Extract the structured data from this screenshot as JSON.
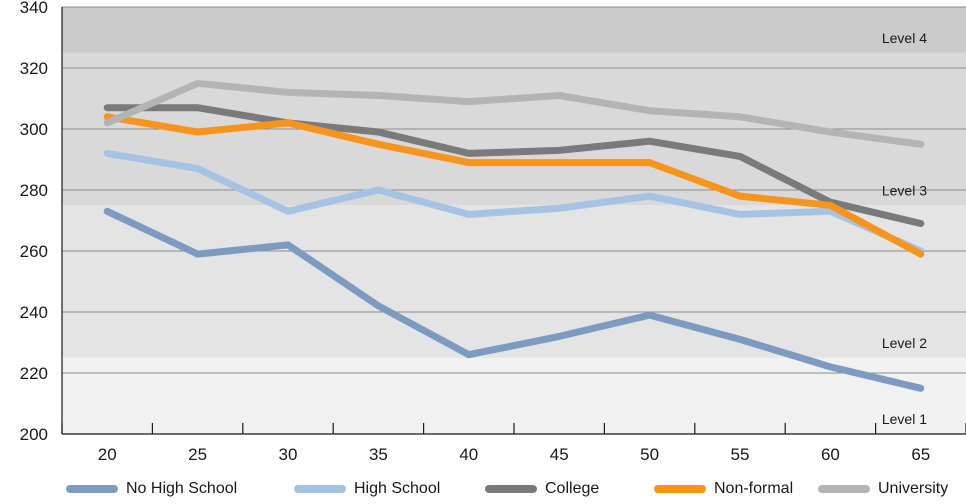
{
  "chart_data": {
    "type": "line",
    "x": [
      20,
      25,
      30,
      35,
      40,
      45,
      50,
      55,
      60,
      65
    ],
    "x_tick_labels": [
      "20",
      "25",
      "30",
      "35",
      "40",
      "45",
      "50",
      "55",
      "60",
      "65"
    ],
    "ylim": [
      200,
      340
    ],
    "y_ticks": [
      200,
      220,
      240,
      260,
      280,
      300,
      320,
      340
    ],
    "y_tick_labels": [
      "200",
      "220",
      "240",
      "260",
      "280",
      "300",
      "320",
      "340"
    ],
    "grid": true,
    "legend_position": "bottom",
    "bands": [
      {
        "label": "Level 1",
        "from": 200,
        "to": 225,
        "color": "#f1f1f1"
      },
      {
        "label": "Level 2",
        "from": 225,
        "to": 275,
        "color": "#e4e4e4"
      },
      {
        "label": "Level 3",
        "from": 275,
        "to": 325,
        "color": "#d9d9d9"
      },
      {
        "label": "Level 4",
        "from": 325,
        "to": 340,
        "color": "#cbcbcb"
      }
    ],
    "series": [
      {
        "name": "No High School",
        "color": "#7d9bc1",
        "values": [
          273,
          259,
          262,
          242,
          226,
          232,
          239,
          231,
          222,
          215
        ]
      },
      {
        "name": "High School",
        "color": "#a7c3e3",
        "values": [
          292,
          287,
          273,
          280,
          272,
          274,
          278,
          272,
          273,
          260
        ]
      },
      {
        "name": "College",
        "color": "#7a7a7a",
        "values": [
          307,
          307,
          302,
          299,
          292,
          293,
          296,
          291,
          276,
          269
        ]
      },
      {
        "name": "Non-formal",
        "color": "#f7941d",
        "values": [
          304,
          299,
          302,
          295,
          289,
          289,
          289,
          278,
          275,
          259
        ]
      },
      {
        "name": "University",
        "color": "#b4b4b4",
        "values": [
          302,
          315,
          312,
          311,
          309,
          311,
          306,
          304,
          299,
          295
        ]
      }
    ]
  }
}
